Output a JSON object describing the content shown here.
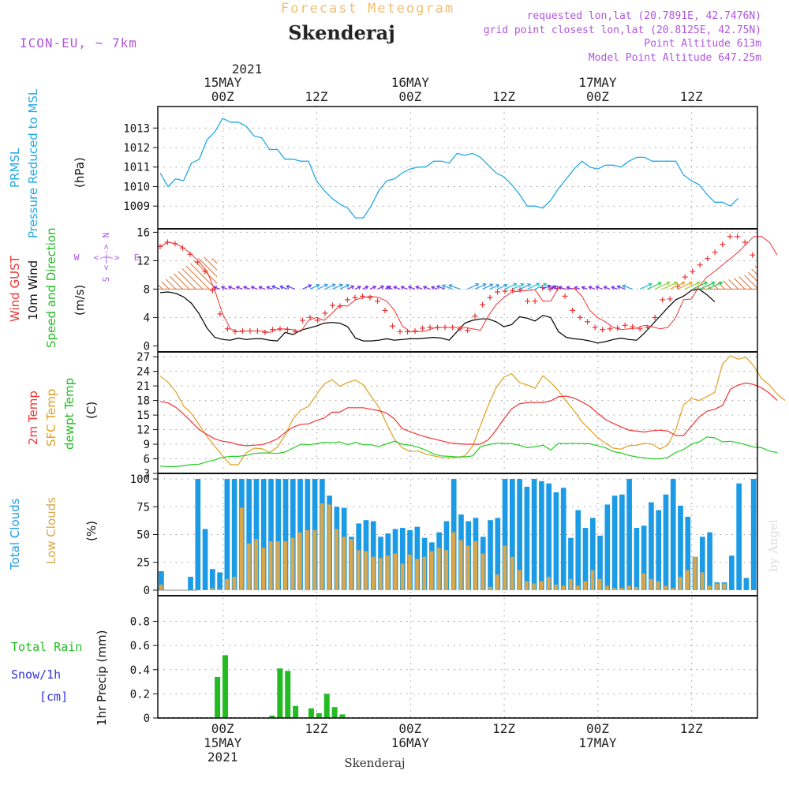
{
  "header": {
    "product_title": "Forecast Meteogram",
    "location": "Skenderaj",
    "model": "ICON-EU, ~ 7km",
    "requested": "requested lon,lat (20.7891E, 42.7476N)",
    "grid_point": "grid point closest lon,lat (20.8125E, 42.75N)",
    "point_altitude": "Point Altitude 613m",
    "model_altitude": "Model Point Altitude 647.25m"
  },
  "footer": {
    "location": "Skenderaj",
    "watermark": "by Angel"
  },
  "time_axis": {
    "year": "2021",
    "top_labels": [
      {
        "t": 8,
        "hour": "00Z",
        "date": "15MAY"
      },
      {
        "t": 20,
        "hour": "12Z",
        "date": ""
      },
      {
        "t": 32,
        "hour": "00Z",
        "date": "16MAY"
      },
      {
        "t": 44,
        "hour": "12Z",
        "date": ""
      },
      {
        "t": 56,
        "hour": "00Z",
        "date": "17MAY"
      },
      {
        "t": 68,
        "hour": "12Z",
        "date": ""
      }
    ],
    "bottom_labels": [
      {
        "t": 8,
        "hour": "00Z",
        "date": "15MAY",
        "year": "2021"
      },
      {
        "t": 20,
        "hour": "12Z",
        "date": "",
        "year": ""
      },
      {
        "t": 32,
        "hour": "00Z",
        "date": "16MAY",
        "year": ""
      },
      {
        "t": 44,
        "hour": "12Z",
        "date": "",
        "year": ""
      },
      {
        "t": 56,
        "hour": "00Z",
        "date": "17MAY",
        "year": ""
      },
      {
        "t": 68,
        "hour": "12Z",
        "date": "",
        "year": ""
      }
    ]
  },
  "colors": {
    "pressure": "#22a8e6",
    "gust": "#ee3333",
    "wind10m": "#000000",
    "wind_dir_label": "#22bb22",
    "temp2m": "#ee3333",
    "sfc_temp": "#e0a020",
    "dewpoint": "#22cc22",
    "total_clouds": "#1b9be6",
    "low_clouds": "#d9a64a",
    "rain": "#22bb22",
    "snow": "#3333dd",
    "compass": "#b055e0",
    "header_purple": "#b055e0",
    "title_orange": "#f0c070"
  },
  "panels": {
    "pressure": {
      "labels": [
        "PRMSL",
        "Pressure Reduced to MSL"
      ],
      "unit": "(hPa)",
      "ticks": [
        1009,
        1010,
        1011,
        1012,
        1013
      ]
    },
    "wind": {
      "labels": [
        "Wind GUST",
        "10m Wind",
        "Speed and Direction"
      ],
      "unit": "(m/s)",
      "ticks": [
        0,
        4,
        8,
        12,
        16
      ],
      "compass": {
        "n": "N",
        "s": "S",
        "w": "W",
        "e": "E",
        "arrows": "<-|->"
      }
    },
    "temperature": {
      "labels": [
        "2m Temp",
        "SFC Temp",
        "dewpt Temp"
      ],
      "unit": "(C)",
      "ticks": [
        3,
        6,
        9,
        12,
        15,
        18,
        21,
        24,
        27
      ]
    },
    "clouds": {
      "labels": [
        "Total Clouds",
        "Low Clouds"
      ],
      "unit": "(%)",
      "ticks": [
        0,
        25,
        50,
        75,
        100
      ]
    },
    "precip": {
      "labels": [
        "Total  Rain",
        "Snow/1h",
        "[cm]"
      ],
      "unit": "1hr Precip (mm)",
      "ticks": [
        "0",
        "0.2",
        "0.4",
        "0.6",
        "0.8"
      ]
    }
  },
  "chart_data": [
    {
      "type": "line",
      "title": "PRMSL Pressure Reduced to MSL",
      "ylabel": "(hPa)",
      "ylim": [
        1008.2,
        1013.9
      ],
      "x_unit": "hours from 2021-05-14 16Z",
      "series": [
        {
          "name": "PRMSL",
          "values": [
            1010.7,
            1010.0,
            1010.4,
            1010.3,
            1011.2,
            1011.4,
            1012.4,
            1012.8,
            1013.5,
            1013.3,
            1013.3,
            1013.1,
            1012.6,
            1012.5,
            1011.9,
            1011.9,
            1011.4,
            1011.4,
            1011.3,
            1011.3,
            1010.3,
            1009.8,
            1009.4,
            1009.1,
            1008.9,
            1008.4,
            1008.4,
            1009.0,
            1009.8,
            1010.3,
            1010.4,
            1010.7,
            1010.9,
            1011.0,
            1011.0,
            1011.3,
            1011.3,
            1011.2,
            1011.7,
            1011.6,
            1011.7,
            1011.5,
            1011.1,
            1010.7,
            1010.5,
            1010.1,
            1009.6,
            1009.0,
            1009.0,
            1008.9,
            1009.3,
            1009.9,
            1010.4,
            1010.9,
            1011.3,
            1011.0,
            1010.9,
            1011.1,
            1011.1,
            1011.0,
            1011.3,
            1011.5,
            1011.5,
            1011.3,
            1011.3,
            1011.3,
            1011.3,
            1010.6,
            1010.3,
            1010.1,
            1009.6,
            1009.2,
            1009.2,
            1009.0,
            1009.4
          ]
        }
      ]
    },
    {
      "type": "line",
      "title": "Wind GUST / 10m Wind Speed and Direction",
      "ylabel": "(m/s)",
      "ylim": [
        -0.4,
        16.6
      ],
      "series": [
        {
          "name": "Wind GUST",
          "values": [
            14.0,
            14.6,
            14.4,
            13.8,
            12.9,
            11.8,
            10.5,
            7.8,
            4.5,
            2.4,
            2.0,
            2.1,
            2.1,
            2.1,
            1.9,
            2.3,
            2.4,
            2.3,
            2.0,
            3.6,
            4.0,
            3.6,
            4.6,
            5.7,
            5.6,
            6.5,
            6.8,
            7.0,
            6.8,
            6.3,
            5.0,
            2.8,
            2.0,
            2.0,
            2.1,
            2.5,
            2.6,
            2.6,
            2.6,
            2.6,
            2.4,
            2.2,
            4.2,
            5.8,
            6.8,
            7.6,
            7.7,
            7.8,
            7.9,
            6.3,
            6.3,
            8.2,
            8.0,
            8.1,
            7.0,
            5.0,
            4.0,
            3.4,
            2.6,
            2.3,
            2.4,
            2.5,
            2.9,
            2.7,
            2.4,
            2.6,
            4.0,
            6.5,
            6.6,
            8.4,
            9.7,
            10.5,
            11.4,
            12.3,
            13.2,
            14.3,
            15.4,
            15.4,
            14.6,
            12.8
          ]
        },
        {
          "name": "10m Wind",
          "values": [
            7.5,
            7.6,
            7.4,
            6.9,
            6.0,
            4.5,
            2.5,
            1.2,
            0.9,
            0.8,
            1.1,
            0.9,
            1.0,
            1.0,
            0.8,
            0.7,
            1.9,
            1.6,
            2.2,
            2.5,
            2.8,
            3.2,
            3.3,
            3.2,
            2.7,
            1.1,
            0.7,
            0.7,
            0.8,
            1.0,
            0.8,
            0.9,
            1.0,
            1.0,
            1.1,
            1.2,
            1.1,
            0.8,
            2.0,
            3.2,
            3.6,
            3.8,
            3.8,
            3.4,
            2.7,
            3.0,
            4.1,
            3.9,
            3.5,
            4.3,
            4.0,
            2.0,
            1.2,
            1.0,
            0.9,
            0.7,
            0.4,
            0.6,
            0.9,
            1.1,
            0.9,
            0.8,
            1.8,
            3.0,
            4.2,
            5.4,
            6.5,
            7.0,
            7.8,
            8.0,
            7.2,
            6.2
          ]
        }
      ]
    },
    {
      "type": "line",
      "title": "2m Temp / SFC Temp / dewpt Temp",
      "ylabel": "(C)",
      "ylim": [
        3,
        28
      ],
      "series": [
        {
          "name": "2m Temp",
          "values": [
            17.8,
            17.5,
            16.6,
            15.2,
            13.6,
            12.0,
            11.0,
            10.1,
            9.6,
            9.4,
            8.9,
            8.7,
            8.8,
            8.9,
            9.4,
            10.1,
            11.4,
            12.5,
            13.1,
            13.2,
            13.9,
            14.4,
            15.6,
            15.6,
            16.5,
            16.5,
            16.5,
            16.2,
            15.9,
            15.4,
            14.2,
            12.2,
            11.6,
            11.0,
            10.5,
            10.1,
            9.7,
            9.3,
            9.1,
            9.0,
            9.0,
            9.0,
            9.9,
            11.9,
            14.2,
            16.3,
            17.3,
            17.6,
            17.6,
            17.6,
            17.9,
            18.8,
            18.9,
            18.5,
            17.7,
            16.8,
            15.4,
            14.1,
            13.3,
            12.6,
            11.9,
            11.7,
            11.5,
            11.8,
            11.9,
            11.7,
            10.8,
            10.8,
            12.7,
            14.6,
            15.8,
            16.2,
            17.0,
            20.3,
            21.2,
            21.6,
            21.3,
            20.6,
            19.5,
            18.0
          ]
        },
        {
          "name": "SFC Temp",
          "values": [
            23.0,
            21.8,
            19.8,
            16.9,
            15.3,
            13.0,
            10.6,
            8.6,
            6.6,
            4.8,
            4.8,
            7.2,
            8.2,
            8.1,
            7.3,
            8.4,
            10.9,
            14.2,
            16.0,
            16.8,
            19.2,
            21.4,
            22.3,
            20.9,
            21.7,
            22.2,
            21.2,
            18.9,
            16.6,
            13.2,
            10.0,
            8.3,
            7.5,
            7.6,
            7.0,
            6.6,
            6.3,
            6.2,
            6.3,
            6.6,
            8.6,
            12.8,
            17.0,
            20.6,
            22.8,
            23.5,
            21.7,
            21.2,
            20.5,
            23.1,
            21.7,
            20.0,
            17.8,
            15.9,
            13.6,
            12.0,
            10.4,
            9.2,
            8.2,
            8.0,
            8.7,
            8.8,
            9.2,
            9.0,
            8.0,
            8.9,
            11.9,
            17.1,
            18.4,
            18.0,
            18.8,
            19.7,
            25.5,
            27.2,
            26.5,
            26.9,
            25.1,
            22.5,
            21.2,
            19.3,
            18.0
          ]
        },
        {
          "name": "dewpt Temp",
          "values": [
            4.5,
            4.4,
            4.4,
            4.6,
            4.8,
            4.9,
            5.4,
            5.8,
            6.3,
            6.5,
            6.5,
            6.7,
            7.1,
            7.2,
            7.2,
            7.1,
            7.4,
            8.2,
            9.0,
            8.9,
            9.1,
            9.4,
            9.3,
            9.5,
            8.9,
            9.4,
            8.9,
            8.9,
            8.5,
            9.1,
            9.6,
            9.0,
            8.8,
            8.4,
            7.8,
            7.0,
            6.6,
            6.5,
            6.4,
            6.4,
            6.6,
            8.5,
            8.9,
            9.2,
            9.2,
            9.1,
            8.8,
            8.3,
            8.5,
            8.8,
            7.8,
            9.2,
            9.1,
            9.2,
            9.1,
            9.1,
            8.7,
            8.3,
            7.5,
            7.2,
            6.7,
            6.4,
            6.2,
            6.0,
            6.0,
            6.3,
            7.3,
            7.9,
            9.0,
            9.5,
            10.5,
            10.3,
            9.5,
            9.6,
            9.3,
            8.9,
            8.4,
            8.3,
            7.6,
            7.3
          ]
        }
      ]
    },
    {
      "type": "bar",
      "title": "Total Clouds / Low Clouds",
      "ylabel": "(%)",
      "ylim": [
        -5,
        105
      ],
      "series": [
        {
          "name": "Total Clouds",
          "values": [
            17,
            0,
            0,
            0,
            12,
            100,
            55,
            19,
            16,
            100,
            100,
            100,
            100,
            100,
            100,
            100,
            100,
            100,
            100,
            100,
            100,
            100,
            100,
            85,
            75,
            74,
            48,
            60,
            63,
            62,
            48,
            51,
            55,
            56,
            54,
            57,
            47,
            43,
            52,
            62,
            100,
            68,
            62,
            65,
            48,
            63,
            65,
            100,
            100,
            100,
            93,
            100,
            98,
            96,
            88,
            92,
            47,
            72,
            56,
            65,
            49,
            77,
            85,
            86,
            100,
            56,
            58,
            79,
            72,
            86,
            100,
            76,
            66,
            30,
            48,
            52,
            7,
            7,
            31,
            96,
            11,
            100
          ]
        },
        {
          "name": "Low Clouds",
          "values": [
            5,
            0,
            0,
            0,
            0,
            0,
            0,
            2,
            1,
            10,
            12,
            74,
            42,
            46,
            38,
            44,
            44,
            44,
            47,
            52,
            54,
            54,
            78,
            77,
            55,
            48,
            46,
            36,
            35,
            30,
            29,
            31,
            33,
            24,
            32,
            28,
            30,
            35,
            38,
            36,
            52,
            45,
            40,
            44,
            33,
            3,
            14,
            40,
            30,
            18,
            8,
            6,
            8,
            12,
            5,
            4,
            10,
            4,
            8,
            18,
            10,
            4,
            2,
            2,
            4,
            3,
            15,
            10,
            8,
            4,
            2,
            12,
            18,
            30,
            16,
            4,
            6,
            6,
            0,
            0,
            0,
            0
          ]
        }
      ]
    },
    {
      "type": "bar",
      "title": "1hr Precip",
      "ylabel": "1hr Precip (mm)",
      "ylim": [
        0,
        0.98
      ],
      "bars": [
        {
          "name": "Total Rain",
          "t": 7,
          "value": 0.34
        },
        {
          "name": "Total Rain",
          "t": 8,
          "value": 0.52
        },
        {
          "name": "Total Rain",
          "t": 14,
          "value": 0.02
        },
        {
          "name": "Total Rain",
          "t": 15,
          "value": 0.41
        },
        {
          "name": "Total Rain",
          "t": 16,
          "value": 0.39
        },
        {
          "name": "Total Rain",
          "t": 17,
          "value": 0.1
        },
        {
          "name": "Total Rain",
          "t": 19,
          "value": 0.08
        },
        {
          "name": "Total Rain",
          "t": 20,
          "value": 0.04
        },
        {
          "name": "Total Rain",
          "t": 21,
          "value": 0.2
        },
        {
          "name": "Total Rain",
          "t": 22,
          "value": 0.09
        },
        {
          "name": "Total Rain",
          "t": 23,
          "value": 0.03
        }
      ]
    }
  ]
}
